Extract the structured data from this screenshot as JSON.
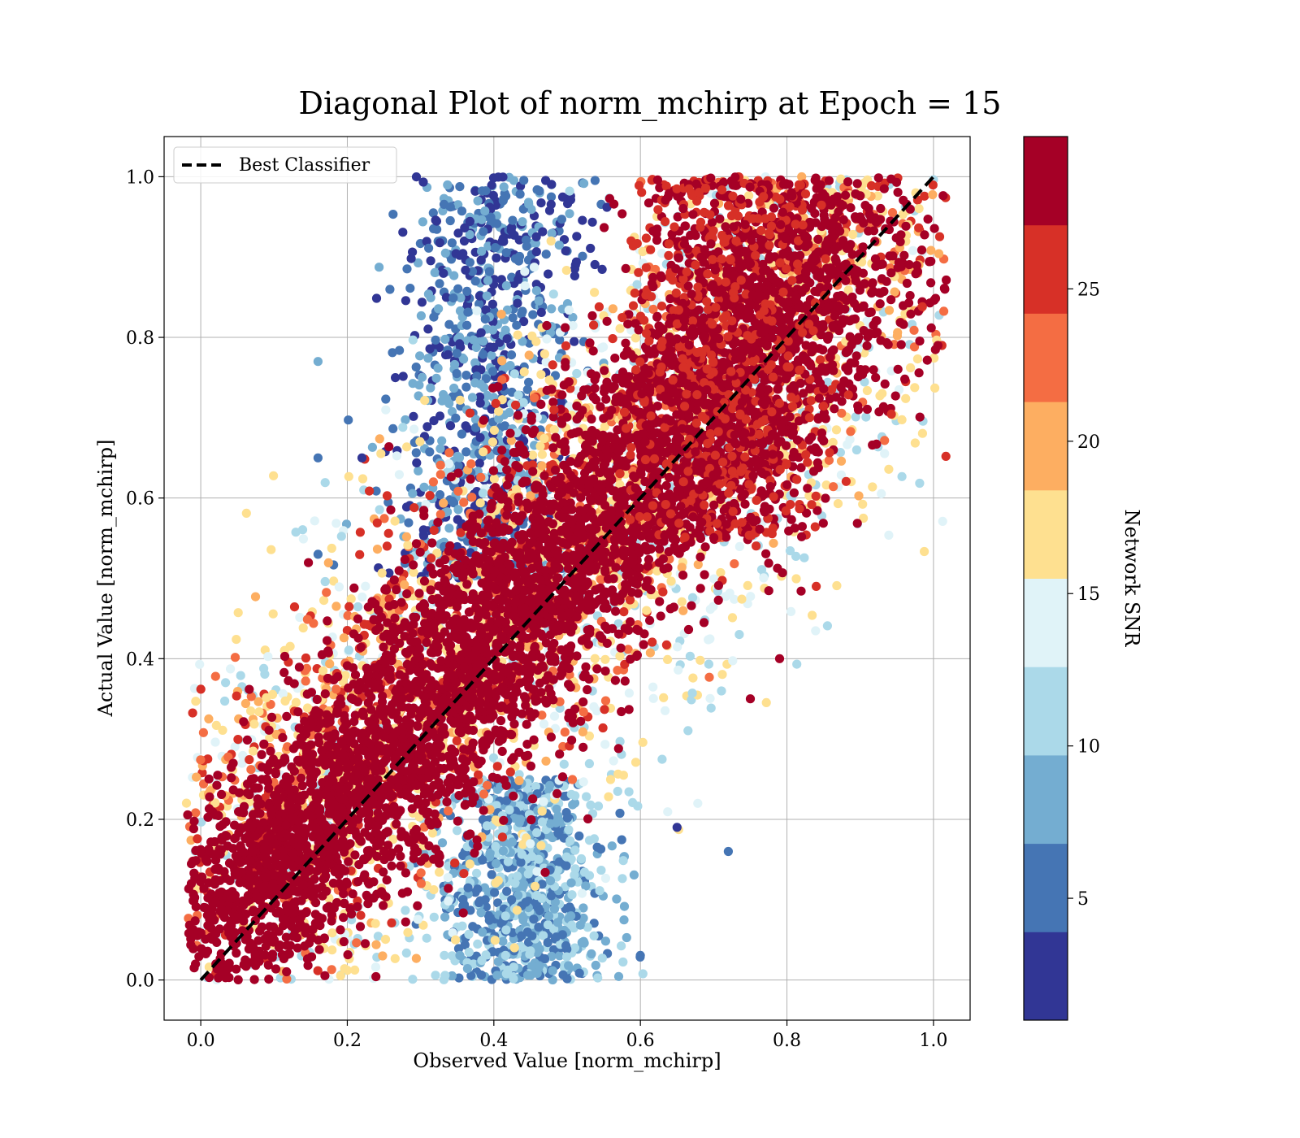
{
  "chart_data": {
    "type": "scatter",
    "title": "Diagonal Plot of norm_mchirp at Epoch = 15",
    "xlabel": "Observed Value [norm_mchirp]",
    "ylabel": "Actual Value [norm_mchirp]",
    "xlim": [
      -0.05,
      1.05
    ],
    "ylim": [
      -0.05,
      1.05
    ],
    "x_ticks": [
      "0.0",
      "0.2",
      "0.4",
      "0.6",
      "0.8",
      "1.0"
    ],
    "y_ticks": [
      "0.0",
      "0.2",
      "0.4",
      "0.6",
      "0.8",
      "1.0"
    ],
    "grid": true,
    "legend": {
      "position": "top-left",
      "entries": [
        "Best Classifier"
      ]
    },
    "reference_line": {
      "name": "Best Classifier",
      "style": "dashed",
      "color": "#000000",
      "x": [
        0,
        1
      ],
      "y": [
        0,
        1
      ]
    },
    "colorbar": {
      "label": "Network SNR",
      "range": [
        1,
        30
      ],
      "ticks": [
        "5",
        "10",
        "15",
        "20",
        "25"
      ],
      "tick_values": [
        5,
        10,
        15,
        20,
        25
      ],
      "colors": [
        "#313695",
        "#4575b4",
        "#74add1",
        "#abd9e9",
        "#e0f3f8",
        "#fee090",
        "#fdae61",
        "#f46d43",
        "#d73027",
        "#a50026"
      ]
    },
    "point_cloud": {
      "description": "dense scatter of predictions vs actual, coloured by SNR",
      "high_snr_band": {
        "snr": ">25",
        "color": "#a50026",
        "spread": 0.08
      },
      "low_snr_regions": [
        {
          "x_center": 0.42,
          "y_range": [
            0.5,
            1.0
          ],
          "color": "#4575b4"
        },
        {
          "x_center": 0.45,
          "y_range": [
            0.0,
            0.25
          ],
          "color": "#74add1"
        }
      ]
    }
  }
}
